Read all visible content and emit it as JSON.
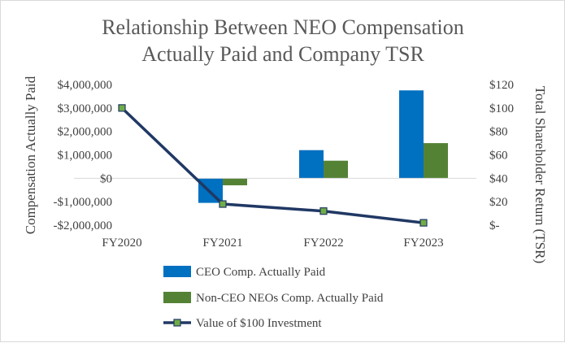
{
  "chart_data": {
    "type": "bar+line",
    "title_lines": [
      "Relationship Between NEO Compensation",
      "Actually Paid and Company TSR"
    ],
    "categories": [
      "FY2020",
      "FY2021",
      "FY2022",
      "FY2023"
    ],
    "ylabel": "Compensation Actually Paid",
    "y2label": "Total Shareholder Return (TSR)",
    "ylim": [
      -2000000,
      4000000
    ],
    "y2lim": [
      0,
      120
    ],
    "y_ticks": [
      -2000000,
      -1000000,
      0,
      1000000,
      2000000,
      3000000,
      4000000
    ],
    "y_tick_labels": [
      "-$2,000,000",
      "-$1,000,000",
      "$0",
      "$1,000,000",
      "$2,000,000",
      "$3,000,000",
      "$4,000,000"
    ],
    "y2_ticks": [
      0,
      20,
      40,
      60,
      80,
      100,
      120
    ],
    "y2_tick_labels": [
      "$-",
      "$20",
      "$40",
      "$60",
      "$80",
      "$100",
      "$120"
    ],
    "series": [
      {
        "name": "CEO Comp. Actually Paid",
        "type": "bar",
        "axis": "left",
        "color": "#0070c0",
        "values": [
          null,
          -1050000,
          1200000,
          3750000
        ]
      },
      {
        "name": "Non-CEO NEOs Comp. Actually Paid",
        "type": "bar",
        "axis": "left",
        "color": "#548235",
        "values": [
          null,
          -300000,
          750000,
          1500000
        ]
      },
      {
        "name": "Value of $100 Investment",
        "type": "line",
        "axis": "right",
        "color": "#203864",
        "marker_color": "#70ad47",
        "values": [
          100,
          18,
          12,
          2
        ]
      }
    ],
    "legend_position": "bottom"
  }
}
